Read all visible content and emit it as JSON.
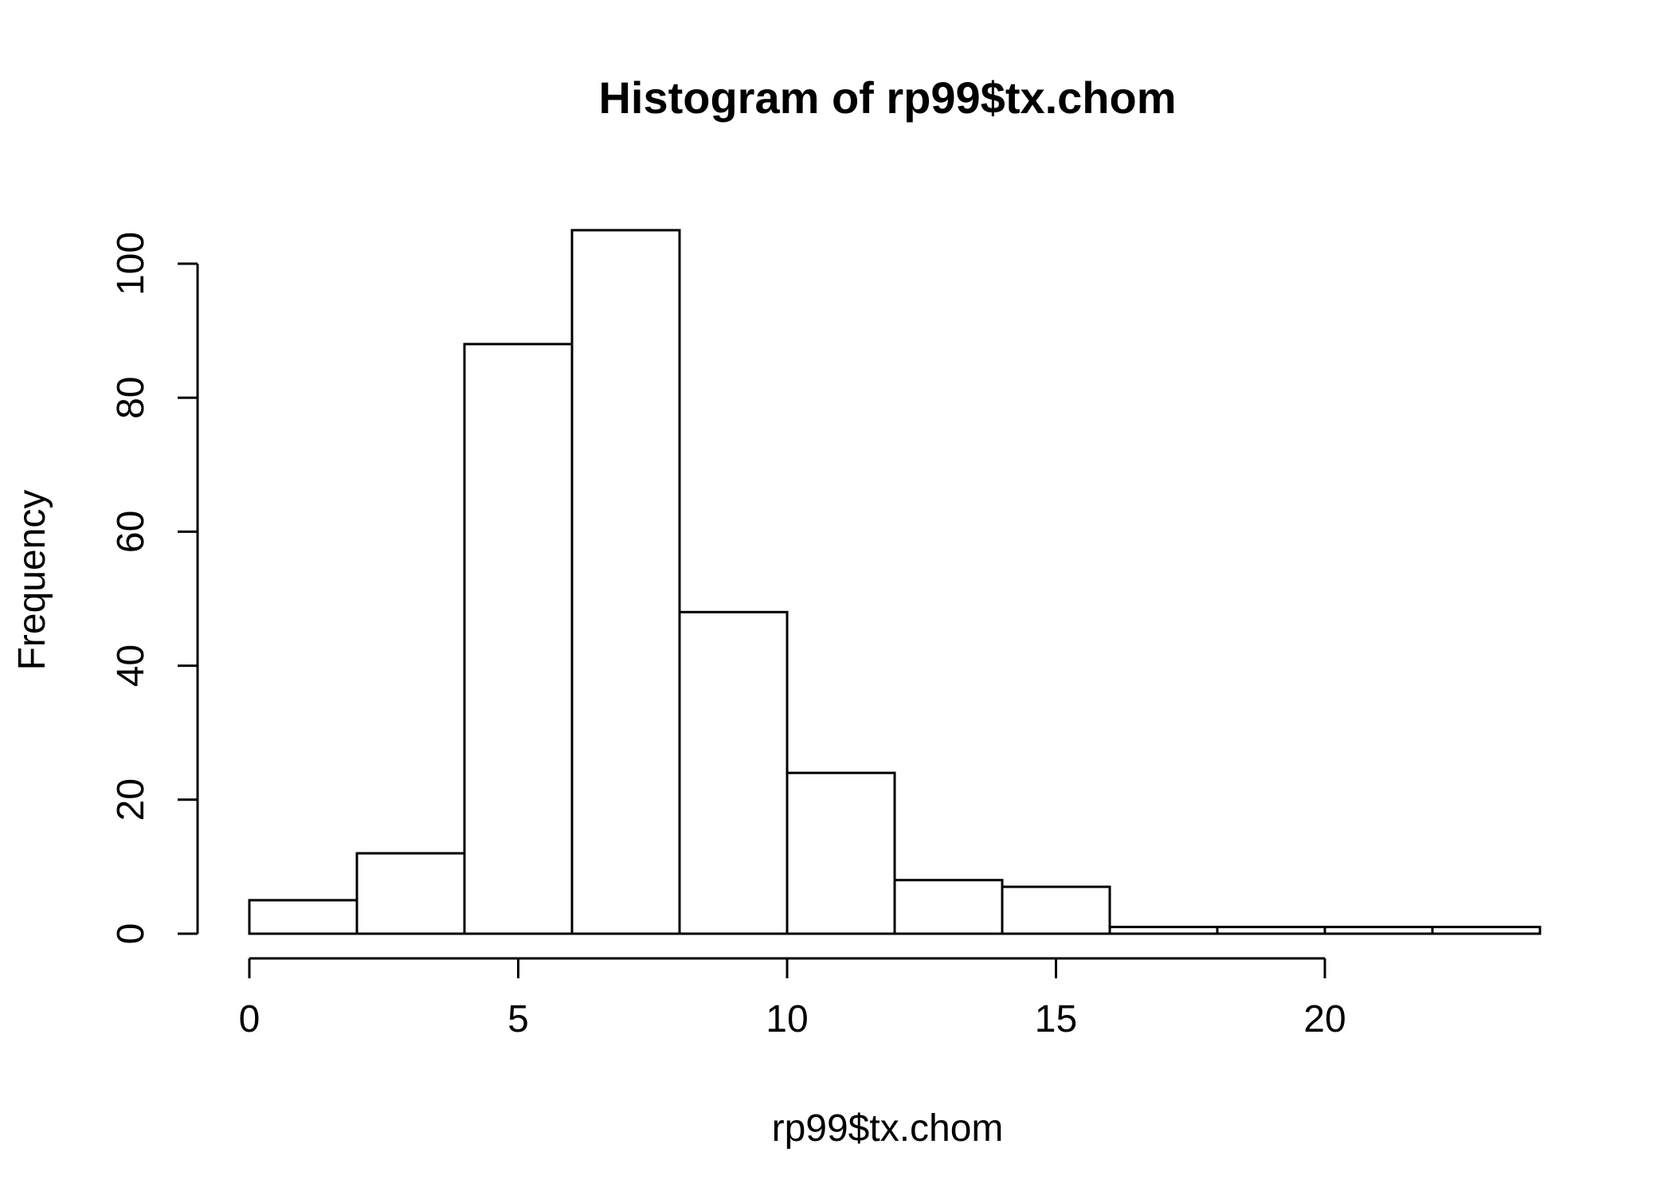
{
  "chart_data": {
    "type": "bar",
    "title": "Histogram of rp99$tx.chom",
    "xlabel": "rp99$tx.chom",
    "ylabel": "Frequency",
    "bins": [
      {
        "from": 0,
        "to": 2,
        "count": 5
      },
      {
        "from": 2,
        "to": 4,
        "count": 12
      },
      {
        "from": 4,
        "to": 6,
        "count": 88
      },
      {
        "from": 6,
        "to": 8,
        "count": 105
      },
      {
        "from": 8,
        "to": 10,
        "count": 48
      },
      {
        "from": 10,
        "to": 12,
        "count": 24
      },
      {
        "from": 12,
        "to": 14,
        "count": 8
      },
      {
        "from": 14,
        "to": 16,
        "count": 7
      },
      {
        "from": 16,
        "to": 18,
        "count": 1
      },
      {
        "from": 18,
        "to": 20,
        "count": 1
      },
      {
        "from": 20,
        "to": 22,
        "count": 1
      },
      {
        "from": 22,
        "to": 24,
        "count": 1
      }
    ],
    "x_ticks": [
      0,
      5,
      10,
      15,
      20
    ],
    "y_ticks": [
      0,
      20,
      40,
      60,
      80,
      100
    ],
    "xlim": [
      0,
      24
    ],
    "ylim": [
      0,
      105
    ],
    "grid": false,
    "legend": "none"
  }
}
